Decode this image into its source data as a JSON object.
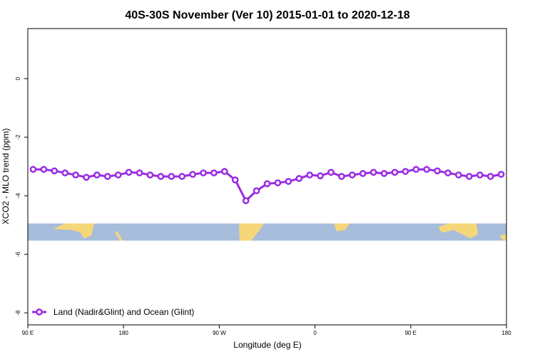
{
  "chart_data": {
    "type": "line",
    "title": "40S-30S November (Ver 10)   2015-01-01 to 2020-12-18",
    "x_label": "Longitude (deg E)",
    "y_label": "XCO2 - MLO trend (ppm)",
    "x": [
      95,
      105,
      115,
      125,
      135,
      145,
      155,
      165,
      175,
      185,
      195,
      205,
      215,
      225,
      235,
      245,
      255,
      265,
      275,
      285,
      295,
      305,
      315,
      325,
      335,
      345,
      355,
      365,
      375,
      385,
      395,
      405,
      415,
      425,
      435,
      445,
      455,
      465,
      475,
      485,
      495,
      505,
      515,
      525,
      535
    ],
    "series": [
      {
        "name": "Land (Nadir&Glint) and Ocean (Glint)",
        "color": "#9a2be2",
        "values": [
          -3.1,
          -3.1,
          -3.15,
          -3.22,
          -3.29,
          -3.37,
          -3.29,
          -3.34,
          -3.29,
          -3.2,
          -3.22,
          -3.29,
          -3.34,
          -3.34,
          -3.34,
          -3.27,
          -3.22,
          -3.22,
          -3.17,
          -3.46,
          -4.17,
          -3.83,
          -3.59,
          -3.56,
          -3.51,
          -3.41,
          -3.29,
          -3.32,
          -3.2,
          -3.34,
          -3.29,
          -3.24,
          -3.2,
          -3.24,
          -3.2,
          -3.17,
          -3.1,
          -3.1,
          -3.15,
          -3.22,
          -3.29,
          -3.34,
          -3.29,
          -3.34,
          -3.27
        ]
      }
    ],
    "xlim": [
      90,
      540
    ],
    "xticks": [
      {
        "value": 90,
        "label": "90 E"
      },
      {
        "value": 180,
        "label": "180"
      },
      {
        "value": 270,
        "label": "90 W"
      },
      {
        "value": 360,
        "label": "0"
      },
      {
        "value": 450,
        "label": "90 E"
      },
      {
        "value": 540,
        "label": "180"
      }
    ],
    "ylim": [
      -8.41,
      1.71
    ],
    "yticks": [
      0,
      -2,
      -4,
      -6,
      -8
    ],
    "legend": "bottom-left"
  }
}
